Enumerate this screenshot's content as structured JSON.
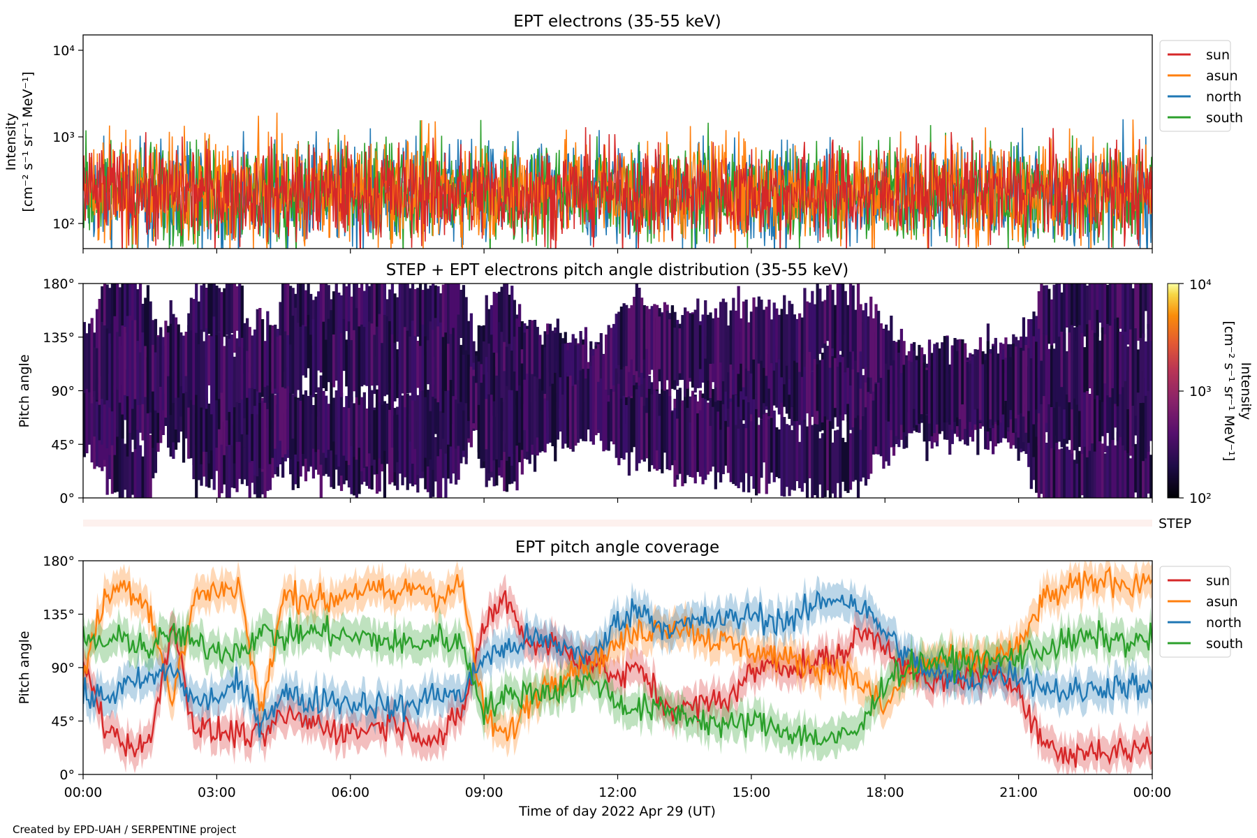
{
  "footer": {
    "credit": "Created by EPD-UAH / SERPENTINE project"
  },
  "colors": {
    "sun": "#d62728",
    "asun": "#ff7f0e",
    "north": "#1f77b4",
    "south": "#2ca02c",
    "step_strip": "#fdf1ee"
  },
  "time_axis": {
    "label": "Time of day 2022 Apr 29 (UT)",
    "ticks": [
      "00:00",
      "03:00",
      "06:00",
      "09:00",
      "12:00",
      "15:00",
      "18:00",
      "21:00",
      "00:00"
    ]
  },
  "step_strip": {
    "label": "STEP"
  },
  "chart_data": [
    {
      "type": "line",
      "title": "EPT electrons (35-55 keV)",
      "ylabel_line1": "Intensity",
      "ylabel_line2": "[cm⁻² s⁻¹ sr⁻¹ MeV⁻¹]",
      "yscale": "log",
      "ylim": [
        50,
        15000
      ],
      "yticks": [
        {
          "value": 100,
          "label": "10²"
        },
        {
          "value": 1000,
          "label": "10³"
        },
        {
          "value": 10000,
          "label": "10⁴"
        }
      ],
      "xlim_hours": [
        0,
        24
      ],
      "legend_position": "top-right",
      "series": [
        {
          "name": "sun",
          "color": "#d62728",
          "typical_value": 220,
          "spread_decades": 0.28
        },
        {
          "name": "asun",
          "color": "#ff7f0e",
          "typical_value": 240,
          "spread_decades": 0.3
        },
        {
          "name": "north",
          "color": "#1f77b4",
          "typical_value": 210,
          "spread_decades": 0.3
        },
        {
          "name": "south",
          "color": "#2ca02c",
          "typical_value": 220,
          "spread_decades": 0.3
        }
      ]
    },
    {
      "type": "heatmap",
      "title": "STEP + EPT electrons pitch angle distribution (35-55 keV)",
      "ylabel": "Pitch angle",
      "ylim": [
        0,
        180
      ],
      "yticks": [
        "0°",
        "45°",
        "90°",
        "135°",
        "180°"
      ],
      "xlim_hours": [
        0,
        24
      ],
      "colorbar": {
        "label_line1": "Intensity",
        "label_line2": "[cm⁻² s⁻¹ sr⁻¹ MeV⁻¹]",
        "scale": "log",
        "range": [
          100,
          10000
        ],
        "ticks": [
          "10²",
          "10³",
          "10⁴"
        ],
        "colormap": "inferno"
      },
      "note": "Intensities mostly near 10²–4×10²; white gaps where no data"
    },
    {
      "type": "line",
      "title": "EPT pitch angle coverage",
      "ylabel": "Pitch angle",
      "ylim": [
        0,
        180
      ],
      "yticks": [
        "0°",
        "45°",
        "90°",
        "135°",
        "180°"
      ],
      "xlim_hours": [
        0,
        24
      ],
      "legend_position": "top-right",
      "series": [
        {
          "name": "sun",
          "color": "#d62728",
          "x": [
            0,
            0.5,
            1,
            1.5,
            2,
            2.5,
            3,
            3.5,
            4,
            4.5,
            5,
            5.5,
            6,
            6.5,
            7,
            7.5,
            8,
            8.5,
            9,
            9.5,
            10,
            10.5,
            11,
            11.5,
            12,
            12.5,
            13,
            13.5,
            14,
            14.5,
            15,
            15.5,
            16,
            16.5,
            17,
            17.5,
            18,
            18.5,
            19,
            19.5,
            20,
            20.5,
            21,
            21.5,
            22,
            22.5,
            23,
            23.5,
            24
          ],
          "y": [
            95,
            40,
            25,
            25,
            130,
            40,
            35,
            35,
            30,
            50,
            45,
            40,
            35,
            40,
            45,
            35,
            30,
            50,
            125,
            150,
            110,
            110,
            100,
            95,
            80,
            90,
            60,
            55,
            60,
            65,
            85,
            95,
            90,
            95,
            100,
            120,
            110,
            90,
            75,
            80,
            85,
            80,
            75,
            30,
            15,
            20,
            20,
            20,
            25
          ]
        },
        {
          "name": "asun",
          "color": "#ff7f0e",
          "x": [
            0,
            0.5,
            1,
            1.5,
            2,
            2.5,
            3,
            3.5,
            4,
            4.5,
            5,
            5.5,
            6,
            6.5,
            7,
            7.5,
            8,
            8.5,
            9,
            9.5,
            10,
            10.5,
            11,
            11.5,
            12,
            12.5,
            13,
            13.5,
            14,
            14.5,
            15,
            15.5,
            16,
            16.5,
            17,
            17.5,
            18,
            18.5,
            19,
            19.5,
            20,
            20.5,
            21,
            21.5,
            22,
            22.5,
            23,
            23.5,
            24
          ],
          "y": [
            85,
            150,
            160,
            140,
            60,
            150,
            155,
            160,
            50,
            150,
            150,
            145,
            155,
            155,
            150,
            160,
            150,
            160,
            50,
            30,
            60,
            80,
            90,
            95,
            110,
            120,
            125,
            125,
            115,
            110,
            105,
            100,
            95,
            90,
            90,
            75,
            55,
            85,
            95,
            95,
            95,
            100,
            105,
            145,
            155,
            160,
            165,
            160,
            165
          ]
        },
        {
          "name": "north",
          "color": "#1f77b4",
          "x": [
            0,
            0.5,
            1,
            1.5,
            2,
            2.5,
            3,
            3.5,
            4,
            4.5,
            5,
            5.5,
            6,
            6.5,
            7,
            7.5,
            8,
            8.5,
            9,
            9.5,
            10,
            10.5,
            11,
            11.5,
            12,
            12.5,
            13,
            13.5,
            14,
            14.5,
            15,
            15.5,
            16,
            16.5,
            17,
            17.5,
            18,
            18.5,
            19,
            19.5,
            20,
            20.5,
            21,
            21.5,
            22,
            22.5,
            23,
            23.5,
            24
          ],
          "y": [
            65,
            65,
            75,
            80,
            90,
            60,
            65,
            75,
            45,
            70,
            60,
            65,
            60,
            60,
            55,
            60,
            70,
            65,
            100,
            105,
            115,
            110,
            105,
            100,
            130,
            140,
            125,
            125,
            130,
            130,
            135,
            130,
            130,
            145,
            150,
            140,
            120,
            100,
            85,
            80,
            80,
            85,
            85,
            75,
            70,
            70,
            75,
            75,
            70
          ]
        },
        {
          "name": "south",
          "color": "#2ca02c",
          "x": [
            0,
            0.5,
            1,
            1.5,
            2,
            2.5,
            3,
            3.5,
            4,
            4.5,
            5,
            5.5,
            6,
            6.5,
            7,
            7.5,
            8,
            8.5,
            9,
            9.5,
            10,
            10.5,
            11,
            11.5,
            12,
            12.5,
            13,
            13.5,
            14,
            14.5,
            15,
            15.5,
            16,
            16.5,
            17,
            17.5,
            18,
            18.5,
            19,
            19.5,
            20,
            20.5,
            21,
            21.5,
            22,
            22.5,
            23,
            23.5,
            24
          ],
          "y": [
            115,
            110,
            115,
            105,
            120,
            110,
            105,
            105,
            120,
            115,
            120,
            120,
            115,
            115,
            110,
            110,
            115,
            110,
            55,
            65,
            70,
            70,
            75,
            80,
            60,
            55,
            55,
            50,
            45,
            40,
            45,
            40,
            35,
            30,
            30,
            40,
            80,
            90,
            95,
            95,
            95,
            95,
            100,
            105,
            110,
            115,
            115,
            110,
            115
          ]
        }
      ]
    }
  ]
}
